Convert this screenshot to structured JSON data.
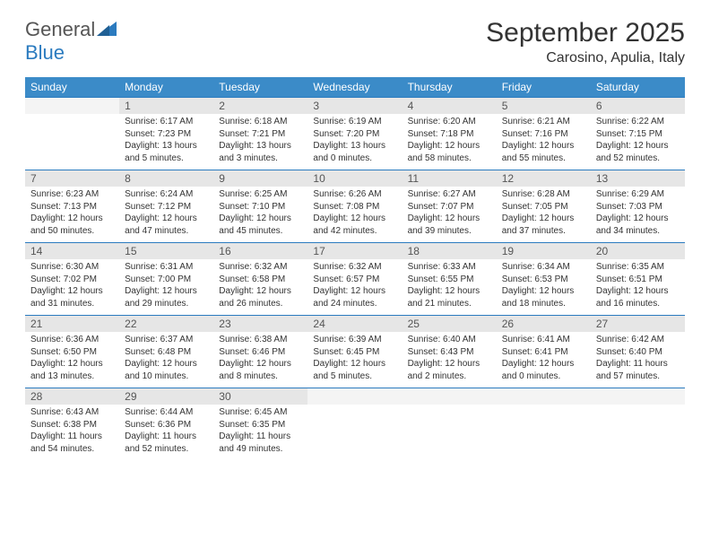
{
  "logo": {
    "general": "General",
    "blue": "Blue"
  },
  "title": "September 2025",
  "location": "Carosino, Apulia, Italy",
  "colors": {
    "header_bg": "#3b8bc8",
    "header_text": "#ffffff",
    "daynum_bg": "#e6e6e6",
    "border_top": "#2b7bbf",
    "logo_blue": "#2b7bbf",
    "logo_grey": "#555555"
  },
  "day_headers": [
    "Sunday",
    "Monday",
    "Tuesday",
    "Wednesday",
    "Thursday",
    "Friday",
    "Saturday"
  ],
  "weeks": [
    {
      "nums": [
        "",
        "1",
        "2",
        "3",
        "4",
        "5",
        "6"
      ],
      "cells": [
        null,
        {
          "sunrise": "Sunrise: 6:17 AM",
          "sunset": "Sunset: 7:23 PM",
          "daylight": "Daylight: 13 hours and 5 minutes."
        },
        {
          "sunrise": "Sunrise: 6:18 AM",
          "sunset": "Sunset: 7:21 PM",
          "daylight": "Daylight: 13 hours and 3 minutes."
        },
        {
          "sunrise": "Sunrise: 6:19 AM",
          "sunset": "Sunset: 7:20 PM",
          "daylight": "Daylight: 13 hours and 0 minutes."
        },
        {
          "sunrise": "Sunrise: 6:20 AM",
          "sunset": "Sunset: 7:18 PM",
          "daylight": "Daylight: 12 hours and 58 minutes."
        },
        {
          "sunrise": "Sunrise: 6:21 AM",
          "sunset": "Sunset: 7:16 PM",
          "daylight": "Daylight: 12 hours and 55 minutes."
        },
        {
          "sunrise": "Sunrise: 6:22 AM",
          "sunset": "Sunset: 7:15 PM",
          "daylight": "Daylight: 12 hours and 52 minutes."
        }
      ]
    },
    {
      "nums": [
        "7",
        "8",
        "9",
        "10",
        "11",
        "12",
        "13"
      ],
      "cells": [
        {
          "sunrise": "Sunrise: 6:23 AM",
          "sunset": "Sunset: 7:13 PM",
          "daylight": "Daylight: 12 hours and 50 minutes."
        },
        {
          "sunrise": "Sunrise: 6:24 AM",
          "sunset": "Sunset: 7:12 PM",
          "daylight": "Daylight: 12 hours and 47 minutes."
        },
        {
          "sunrise": "Sunrise: 6:25 AM",
          "sunset": "Sunset: 7:10 PM",
          "daylight": "Daylight: 12 hours and 45 minutes."
        },
        {
          "sunrise": "Sunrise: 6:26 AM",
          "sunset": "Sunset: 7:08 PM",
          "daylight": "Daylight: 12 hours and 42 minutes."
        },
        {
          "sunrise": "Sunrise: 6:27 AM",
          "sunset": "Sunset: 7:07 PM",
          "daylight": "Daylight: 12 hours and 39 minutes."
        },
        {
          "sunrise": "Sunrise: 6:28 AM",
          "sunset": "Sunset: 7:05 PM",
          "daylight": "Daylight: 12 hours and 37 minutes."
        },
        {
          "sunrise": "Sunrise: 6:29 AM",
          "sunset": "Sunset: 7:03 PM",
          "daylight": "Daylight: 12 hours and 34 minutes."
        }
      ]
    },
    {
      "nums": [
        "14",
        "15",
        "16",
        "17",
        "18",
        "19",
        "20"
      ],
      "cells": [
        {
          "sunrise": "Sunrise: 6:30 AM",
          "sunset": "Sunset: 7:02 PM",
          "daylight": "Daylight: 12 hours and 31 minutes."
        },
        {
          "sunrise": "Sunrise: 6:31 AM",
          "sunset": "Sunset: 7:00 PM",
          "daylight": "Daylight: 12 hours and 29 minutes."
        },
        {
          "sunrise": "Sunrise: 6:32 AM",
          "sunset": "Sunset: 6:58 PM",
          "daylight": "Daylight: 12 hours and 26 minutes."
        },
        {
          "sunrise": "Sunrise: 6:32 AM",
          "sunset": "Sunset: 6:57 PM",
          "daylight": "Daylight: 12 hours and 24 minutes."
        },
        {
          "sunrise": "Sunrise: 6:33 AM",
          "sunset": "Sunset: 6:55 PM",
          "daylight": "Daylight: 12 hours and 21 minutes."
        },
        {
          "sunrise": "Sunrise: 6:34 AM",
          "sunset": "Sunset: 6:53 PM",
          "daylight": "Daylight: 12 hours and 18 minutes."
        },
        {
          "sunrise": "Sunrise: 6:35 AM",
          "sunset": "Sunset: 6:51 PM",
          "daylight": "Daylight: 12 hours and 16 minutes."
        }
      ]
    },
    {
      "nums": [
        "21",
        "22",
        "23",
        "24",
        "25",
        "26",
        "27"
      ],
      "cells": [
        {
          "sunrise": "Sunrise: 6:36 AM",
          "sunset": "Sunset: 6:50 PM",
          "daylight": "Daylight: 12 hours and 13 minutes."
        },
        {
          "sunrise": "Sunrise: 6:37 AM",
          "sunset": "Sunset: 6:48 PM",
          "daylight": "Daylight: 12 hours and 10 minutes."
        },
        {
          "sunrise": "Sunrise: 6:38 AM",
          "sunset": "Sunset: 6:46 PM",
          "daylight": "Daylight: 12 hours and 8 minutes."
        },
        {
          "sunrise": "Sunrise: 6:39 AM",
          "sunset": "Sunset: 6:45 PM",
          "daylight": "Daylight: 12 hours and 5 minutes."
        },
        {
          "sunrise": "Sunrise: 6:40 AM",
          "sunset": "Sunset: 6:43 PM",
          "daylight": "Daylight: 12 hours and 2 minutes."
        },
        {
          "sunrise": "Sunrise: 6:41 AM",
          "sunset": "Sunset: 6:41 PM",
          "daylight": "Daylight: 12 hours and 0 minutes."
        },
        {
          "sunrise": "Sunrise: 6:42 AM",
          "sunset": "Sunset: 6:40 PM",
          "daylight": "Daylight: 11 hours and 57 minutes."
        }
      ]
    },
    {
      "nums": [
        "28",
        "29",
        "30",
        "",
        "",
        "",
        ""
      ],
      "cells": [
        {
          "sunrise": "Sunrise: 6:43 AM",
          "sunset": "Sunset: 6:38 PM",
          "daylight": "Daylight: 11 hours and 54 minutes."
        },
        {
          "sunrise": "Sunrise: 6:44 AM",
          "sunset": "Sunset: 6:36 PM",
          "daylight": "Daylight: 11 hours and 52 minutes."
        },
        {
          "sunrise": "Sunrise: 6:45 AM",
          "sunset": "Sunset: 6:35 PM",
          "daylight": "Daylight: 11 hours and 49 minutes."
        },
        null,
        null,
        null,
        null
      ]
    }
  ]
}
